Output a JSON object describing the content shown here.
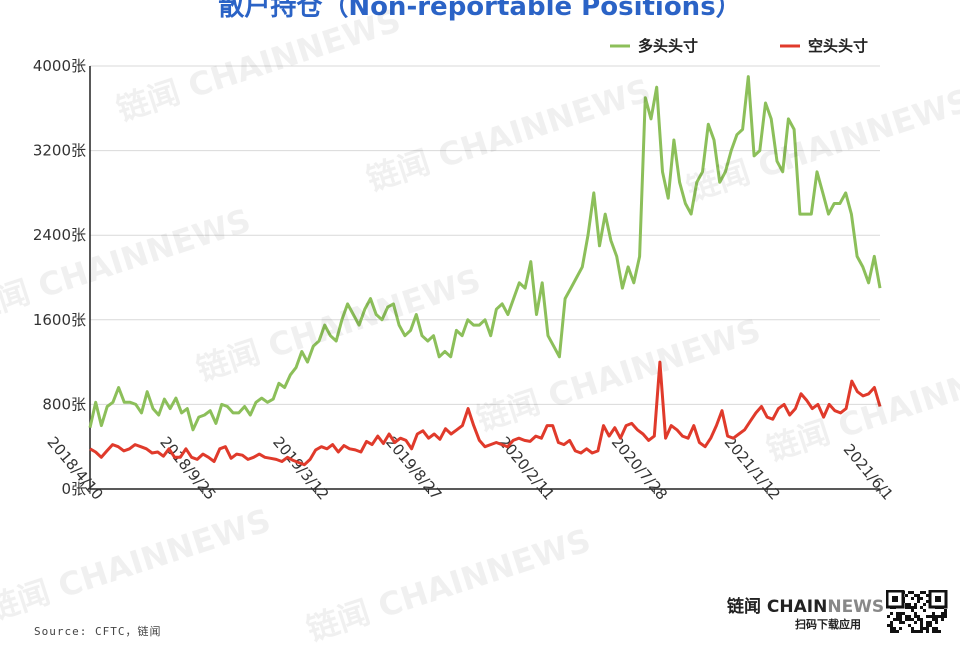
{
  "header": {
    "title": "散户持仓（Non-reportable Positions）"
  },
  "chart_data": {
    "type": "line",
    "title": "散户持仓（Non-reportable Positions）",
    "x_tick_labels": [
      "2018/4/10",
      "2018/9/25",
      "2019/3/12",
      "2019/8/27",
      "2020/2/11",
      "2020/7/28",
      "2021/1/12",
      "2021/6/1"
    ],
    "y_tick_labels": [
      "0张",
      "800张",
      "1600张",
      "2400张",
      "3200张",
      "4000张"
    ],
    "ylim": [
      0,
      4000
    ],
    "grid": true,
    "legend_position": "top-right",
    "series": [
      {
        "name": "多头头寸",
        "color": "#8cbf5a",
        "values": [
          580,
          820,
          600,
          780,
          820,
          960,
          820,
          820,
          800,
          720,
          920,
          760,
          700,
          850,
          760,
          860,
          720,
          760,
          560,
          680,
          700,
          740,
          620,
          800,
          780,
          720,
          720,
          780,
          700,
          820,
          860,
          820,
          850,
          1000,
          960,
          1080,
          1150,
          1300,
          1200,
          1350,
          1400,
          1550,
          1450,
          1400,
          1600,
          1750,
          1650,
          1550,
          1700,
          1800,
          1650,
          1600,
          1720,
          1750,
          1550,
          1450,
          1500,
          1650,
          1450,
          1400,
          1450,
          1250,
          1300,
          1250,
          1500,
          1450,
          1600,
          1550,
          1550,
          1600,
          1450,
          1700,
          1750,
          1650,
          1800,
          1950,
          1900,
          2150,
          1650,
          1950,
          1450,
          1350,
          1250,
          1800,
          1900,
          2000,
          2100,
          2400,
          2800,
          2300,
          2600,
          2350,
          2200,
          1900,
          2100,
          1950,
          2200,
          3700,
          3500,
          3800,
          3000,
          2750,
          3300,
          2900,
          2700,
          2600,
          2900,
          3000,
          3450,
          3300,
          2900,
          3000,
          3200,
          3350,
          3400,
          3900,
          3150,
          3200,
          3650,
          3500,
          3100,
          3000,
          3500,
          3400,
          2600,
          2600,
          2600,
          3000,
          2800,
          2600,
          2700,
          2700,
          2800,
          2600,
          2200,
          2100,
          1950,
          2200,
          1900
        ]
      },
      {
        "name": "空头头寸",
        "color": "#e03a2b",
        "values": [
          380,
          350,
          300,
          360,
          420,
          400,
          360,
          380,
          420,
          400,
          380,
          340,
          350,
          310,
          380,
          300,
          300,
          380,
          300,
          280,
          330,
          300,
          260,
          380,
          400,
          290,
          330,
          320,
          280,
          300,
          330,
          300,
          290,
          280,
          260,
          300,
          270,
          250,
          230,
          280,
          370,
          400,
          380,
          420,
          350,
          410,
          380,
          370,
          350,
          450,
          420,
          500,
          430,
          520,
          440,
          480,
          460,
          380,
          520,
          550,
          480,
          520,
          470,
          570,
          520,
          560,
          600,
          760,
          600,
          460,
          400,
          420,
          440,
          420,
          400,
          460,
          480,
          460,
          450,
          500,
          480,
          600,
          600,
          440,
          420,
          460,
          360,
          340,
          380,
          340,
          360,
          600,
          500,
          580,
          480,
          600,
          620,
          560,
          520,
          460,
          500,
          1200,
          480,
          600,
          560,
          500,
          480,
          600,
          440,
          400,
          480,
          600,
          740,
          500,
          480,
          520,
          560,
          640,
          720,
          780,
          680,
          660,
          760,
          800,
          700,
          760,
          900,
          840,
          760,
          800,
          680,
          800,
          740,
          720,
          760,
          1020,
          920,
          880,
          900,
          960,
          780
        ]
      }
    ]
  },
  "watermark": "链闻 CHAINNEWS",
  "footer": {
    "source": "Source: CFTC，链闻",
    "brand_cn": "链闻",
    "brand_en_chain": "CHAIN",
    "brand_en_news": "NEWS",
    "brand_sub": "扫码下载应用"
  }
}
